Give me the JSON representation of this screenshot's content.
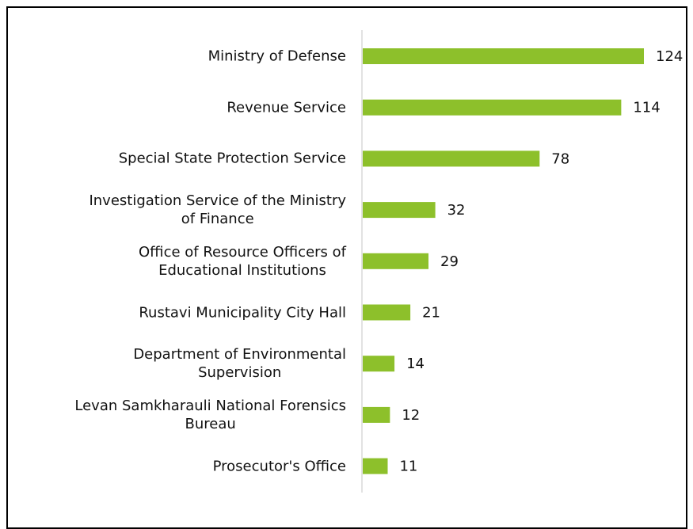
{
  "chart_data": {
    "type": "barh",
    "categories": [
      "Ministry of Defense",
      "Revenue Service",
      "Special State Protection Service",
      "Investigation Service of the Ministry\nof Finance",
      "Office of Resource Officers of\nEducational Institutions",
      "Rustavi Municipality City Hall",
      "Department of Environmental\nSupervision",
      "Levan Samkharauli National Forensics\nBureau",
      "Prosecutor's Office"
    ],
    "values": [
      124,
      114,
      78,
      32,
      29,
      21,
      14,
      12,
      11
    ],
    "color": "#8dc02b"
  }
}
